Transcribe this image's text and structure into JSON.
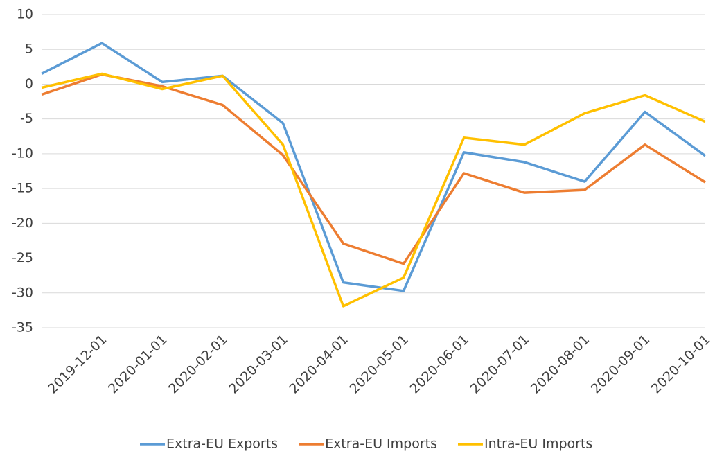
{
  "chart_data": {
    "type": "line",
    "categories": [
      null,
      "2019-12-01",
      "2020-01-01",
      "2020-02-01",
      "2020-03-01",
      "2020-04-01",
      "2020-05-01",
      "2020-06-01",
      "2020-07-01",
      "2020-08-01",
      "2020-09-01",
      "2020-10-01"
    ],
    "series": [
      {
        "name": "Extra-EU Exports",
        "color": "#5b9bd5",
        "values": [
          1.5,
          5.9,
          0.3,
          1.2,
          -5.6,
          -28.5,
          -29.7,
          -9.8,
          -11.2,
          -14.0,
          -4.0,
          -10.3
        ]
      },
      {
        "name": "Extra-EU Imports",
        "color": "#ed7d31",
        "values": [
          -1.5,
          1.4,
          -0.3,
          -3.0,
          -10.2,
          -22.9,
          -25.8,
          -12.8,
          -15.6,
          -15.2,
          -8.7,
          -14.1
        ]
      },
      {
        "name": "Intra-EU Imports",
        "color": "#ffc000",
        "values": [
          -0.5,
          1.5,
          -0.7,
          1.2,
          -8.7,
          -31.9,
          -27.8,
          -7.7,
          -8.7,
          -4.2,
          -1.6,
          -5.4
        ]
      }
    ],
    "ylim": [
      -35,
      10
    ],
    "yticks": [
      -35,
      -30,
      -25,
      -20,
      -15,
      -10,
      -5,
      0,
      5,
      10
    ],
    "grid": true,
    "legend": "bottom"
  }
}
